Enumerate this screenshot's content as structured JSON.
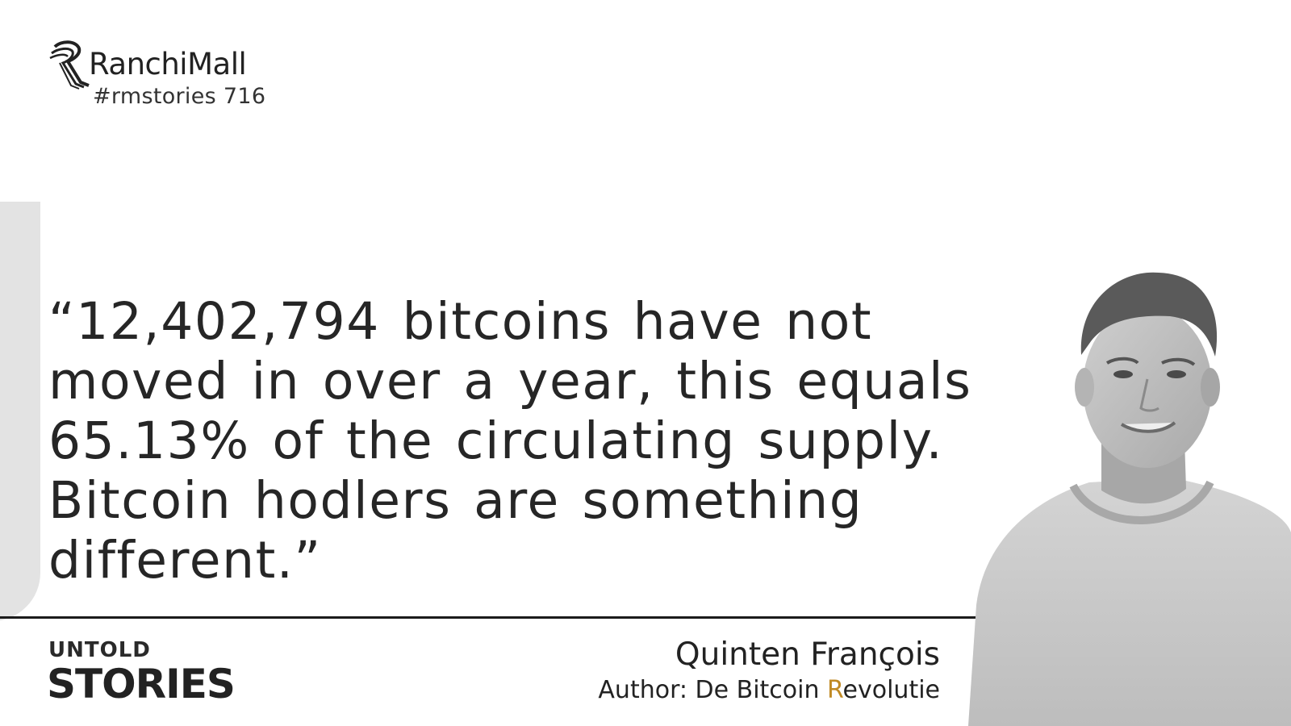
{
  "brand": {
    "name": "RanchiMall",
    "tag": "#rmstories 716"
  },
  "quote": {
    "text": "“12,402,794 bitcoins have not moved in over a year, this equals 65.13% of the circulating supply. Bitcoin hodlers are something different.”"
  },
  "series_label": {
    "top": "UNTOLD",
    "bottom": "STORIES"
  },
  "author": {
    "name": "Quinten François",
    "role_prefix": "Author: De Bitcoin ",
    "role_accent": "R",
    "role_suffix": "evolutie"
  },
  "colors": {
    "accent": "#c08a24",
    "text": "#262626",
    "panel": "#e3e3e3"
  }
}
